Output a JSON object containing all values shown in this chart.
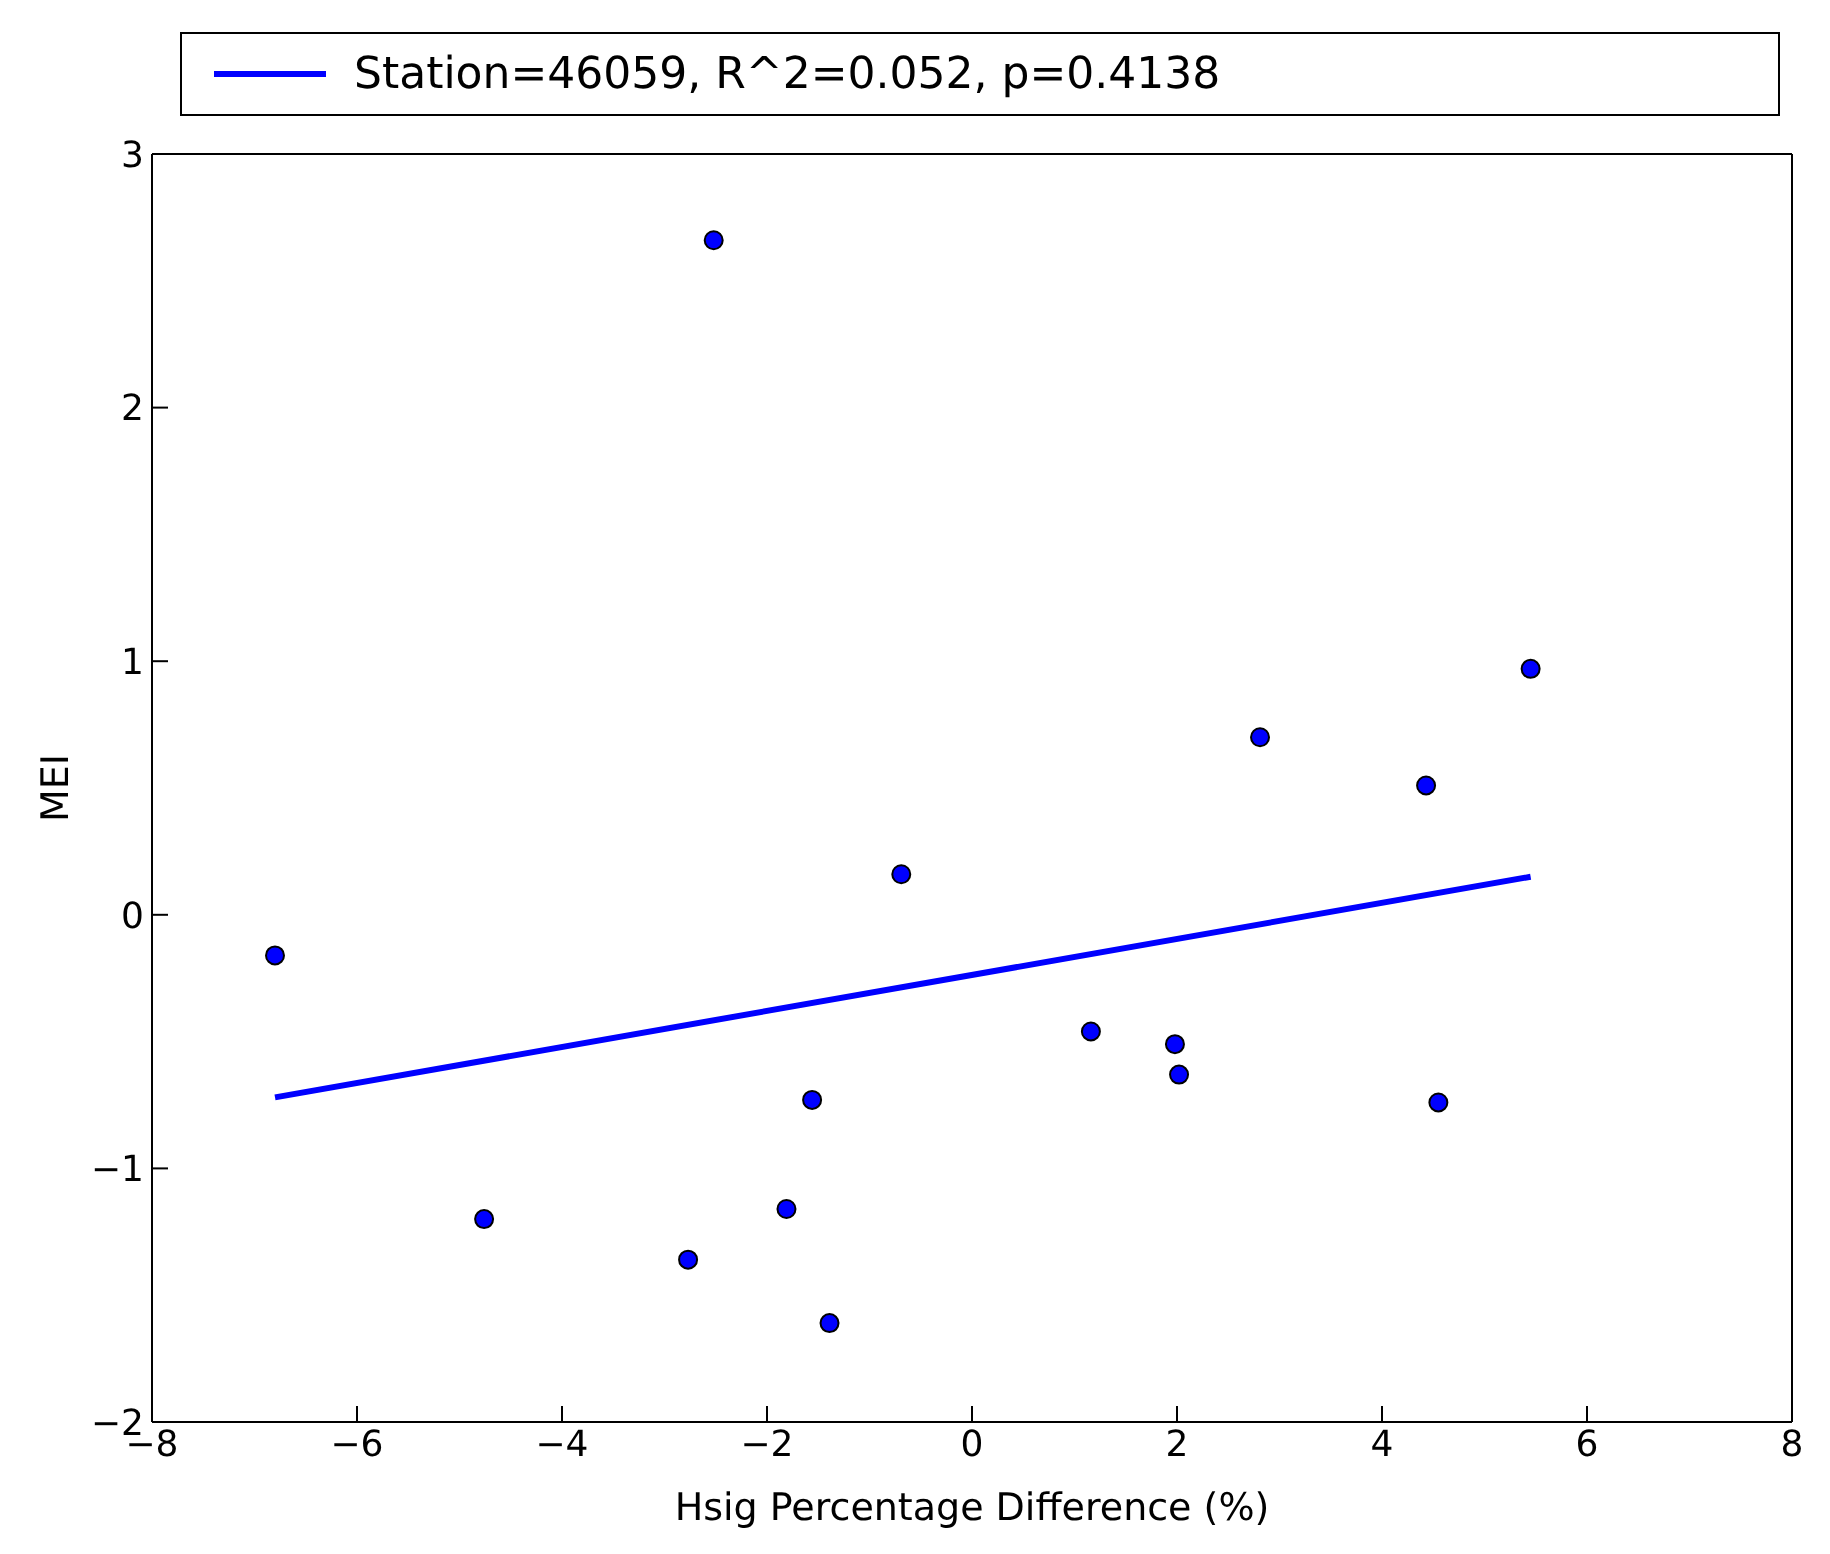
{
  "chart_data": {
    "type": "scatter",
    "xlabel": "Hsig Percentage Difference (%)",
    "ylabel": "MEI",
    "xlim": [
      -8,
      8
    ],
    "xticks": [
      -8,
      -6,
      -4,
      -2,
      0,
      2,
      4,
      6,
      8
    ],
    "ylim": [
      -2,
      3
    ],
    "yticks": [
      -2,
      -1,
      0,
      1,
      2,
      3
    ],
    "grid": false,
    "legend": "top",
    "marker": "circle",
    "series": [
      {
        "color": "#0000ff",
        "x": [
          -2.52,
          -6.8,
          -0.69,
          5.45,
          2.81,
          4.43,
          1.16,
          1.98,
          2.02,
          4.55,
          -1.56,
          -4.76,
          -1.81,
          -2.77,
          -1.39
        ],
        "values": [
          2.66,
          -0.16,
          0.16,
          0.97,
          0.7,
          0.51,
          -0.46,
          -0.51,
          -0.63,
          -0.74,
          -0.73,
          -1.2,
          -1.16,
          -1.36,
          -1.61
        ]
      },
      {
        "type": "line",
        "name": "Station=46059, R^2=0.052, p=0.4138",
        "color": "#0000ff",
        "x": [
          -6.8,
          5.45
        ],
        "values": [
          -0.72,
          0.15
        ],
        "line_style": "solid",
        "marker": "none"
      }
    ]
  }
}
